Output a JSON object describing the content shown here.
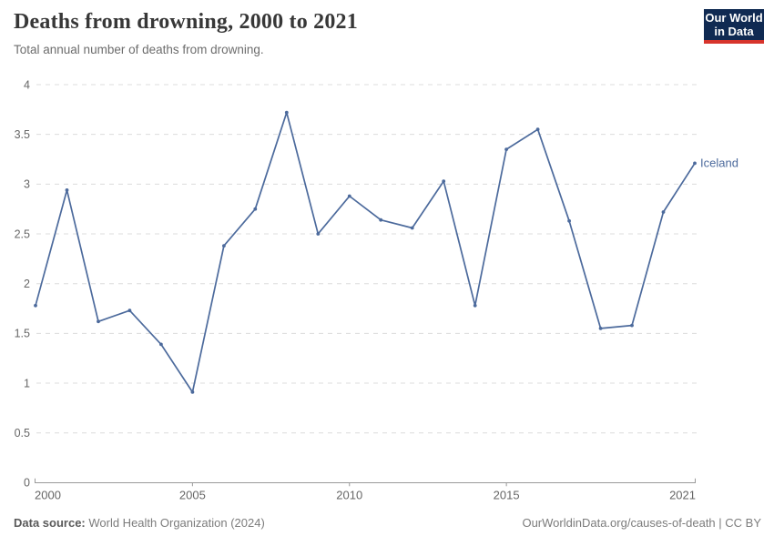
{
  "header": {
    "title": "Deaths from drowning, 2000 to 2021",
    "subtitle": "Total annual number of deaths from drowning.",
    "logo": {
      "line1": "Our World",
      "line2": "in Data"
    }
  },
  "chart_data": {
    "type": "line",
    "title": "Deaths from drowning, 2000 to 2021",
    "xlabel": "",
    "ylabel": "",
    "xlim": [
      2000,
      2021
    ],
    "ylim": [
      0,
      4
    ],
    "xticks": [
      2000,
      2005,
      2010,
      2015,
      2021
    ],
    "yticks": [
      0,
      0.5,
      1,
      1.5,
      2,
      2.5,
      3,
      3.5,
      4
    ],
    "grid": "horizontal-dashed",
    "legend": "end-of-line-label",
    "series": [
      {
        "name": "Iceland",
        "color": "#4C6A9C",
        "x": [
          2000,
          2001,
          2002,
          2003,
          2004,
          2005,
          2006,
          2007,
          2008,
          2009,
          2010,
          2011,
          2012,
          2013,
          2014,
          2015,
          2016,
          2017,
          2018,
          2019,
          2020,
          2021
        ],
        "values": [
          1.78,
          2.94,
          1.62,
          1.73,
          1.39,
          0.91,
          2.38,
          2.75,
          3.72,
          2.5,
          2.88,
          2.64,
          2.56,
          3.03,
          1.78,
          3.35,
          3.55,
          2.63,
          1.55,
          1.58,
          2.72,
          3.21
        ]
      }
    ]
  },
  "footer": {
    "source_label": "Data source:",
    "source_text": " World Health Organization (2024)",
    "link_text": "OurWorldinData.org/causes-of-death | CC BY"
  },
  "colors": {
    "line": "#4C6A9C",
    "grid": "#dcdcdc",
    "axis": "#999999",
    "tick_label": "#666666",
    "title": "#373737",
    "subtitle": "#6d6d6d",
    "footer": "#7c7c7c",
    "logo_bg": "#102a52",
    "logo_bar": "#d7342c"
  }
}
